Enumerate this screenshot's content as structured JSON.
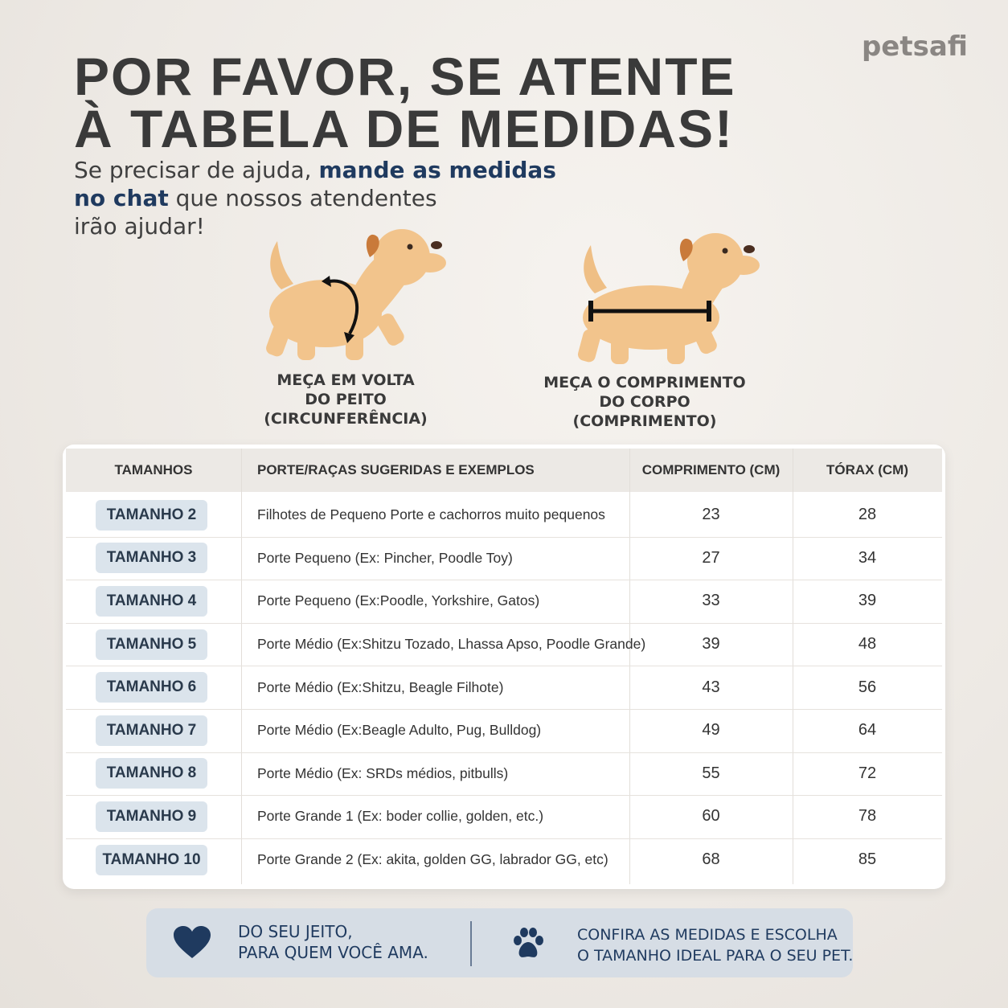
{
  "brand": "petsafi",
  "header": {
    "title_lines": [
      "POR FAVOR, SE ATENTE",
      "À TABELA DE MEDIDAS!"
    ],
    "subtitle": [
      [
        {
          "text": "Se precisar de ajuda, ",
          "bold": false
        },
        {
          "text": "mande as medidas",
          "bold": true
        }
      ],
      [
        {
          "text": "no chat",
          "bold": true
        },
        {
          "text": " que nossos atendentes",
          "bold": false
        }
      ],
      [
        {
          "text": "irão ajudar!",
          "bold": false
        }
      ]
    ]
  },
  "illustrations": [
    {
      "caption_lines": [
        "MEÇA EM VOLTA",
        "DO PEITO",
        "(CIRCUNFERÊNCIA)"
      ]
    },
    {
      "caption_lines": [
        "MEÇA O COMPRIMENTO",
        "DO CORPO",
        "(COMPRIMENTO)"
      ]
    }
  ],
  "table": {
    "columns": [
      "TAMANHOS",
      "PORTE/RAÇAS SUGERIDAS E EXEMPLOS",
      "COMPRIMENTO (CM)",
      "TÓRAX (CM)"
    ],
    "rows": [
      [
        "TAMANHO 2",
        "Filhotes de Pequeno Porte e cachorros muito pequenos",
        23,
        28
      ],
      [
        "TAMANHO 3",
        "Porte Pequeno (Ex: Pincher, Poodle Toy)",
        27,
        34
      ],
      [
        "TAMANHO 4",
        "Porte Pequeno (Ex:Poodle, Yorkshire, Gatos)",
        33,
        39
      ],
      [
        "TAMANHO 5",
        "Porte Médio (Ex:Shitzu Tozado, Lhassa Apso, Poodle Grande)",
        39,
        48
      ],
      [
        "TAMANHO 6",
        "Porte Médio (Ex:Shitzu, Beagle Filhote)",
        43,
        56
      ],
      [
        "TAMANHO 7",
        "Porte Médio (Ex:Beagle Adulto, Pug, Bulldog)",
        49,
        64
      ],
      [
        "TAMANHO 8",
        "Porte Médio (Ex: SRDs médios, pitbulls)",
        55,
        72
      ],
      [
        "TAMANHO 9",
        "Porte Grande 1 (Ex: boder collie, golden, etc.)",
        60,
        78
      ],
      [
        "TAMANHO 10",
        "Porte Grande 2 (Ex: akita, golden GG, labrador GG, etc)",
        68,
        85
      ]
    ]
  },
  "footer": {
    "left_lines": [
      "DO SEU JEITO,",
      "PARA QUEM VOCÊ AMA."
    ],
    "right_lines": [
      "CONFIRA AS MEDIDAS E ESCOLHA",
      "O TAMANHO IDEAL PARA O SEU PET."
    ]
  }
}
